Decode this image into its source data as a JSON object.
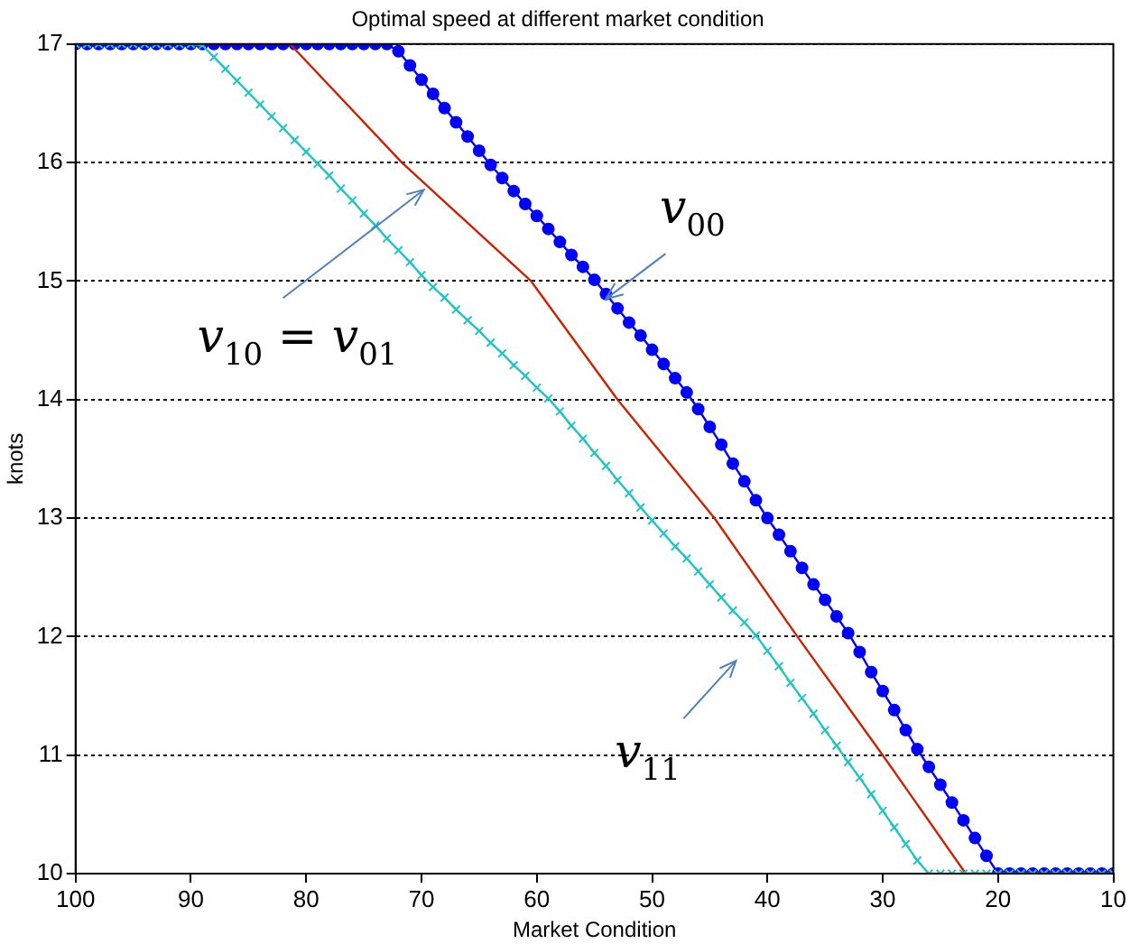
{
  "chart_data": {
    "type": "line",
    "title": "Optimal speed at different market condition",
    "xlabel": "Market Condition",
    "ylabel": "knots",
    "xlim": [
      100,
      10
    ],
    "xticks": [
      100,
      90,
      80,
      70,
      60,
      50,
      40,
      30,
      20,
      10
    ],
    "ylim": [
      10,
      17
    ],
    "yticks": [
      10,
      11,
      12,
      13,
      14,
      15,
      16,
      17
    ],
    "grid": "y",
    "legend": false,
    "series": [
      {
        "color": "#0000ff",
        "marker": "circle",
        "x": [
          100,
          99,
          98,
          97,
          96,
          95,
          94,
          93,
          92,
          91,
          90,
          89,
          88,
          87,
          86,
          85,
          84,
          83,
          82,
          81,
          80,
          79,
          78,
          77,
          76,
          75,
          74,
          73,
          72,
          71,
          70,
          69,
          68,
          67,
          66,
          65,
          64,
          63,
          62,
          61,
          60,
          59,
          58,
          57,
          56,
          55,
          54,
          53,
          52,
          51,
          50,
          49,
          48,
          47,
          46,
          45,
          44,
          43,
          42,
          41,
          40,
          39,
          38,
          37,
          36,
          35,
          34,
          33,
          32,
          31,
          30,
          29,
          28,
          27,
          26,
          25,
          24,
          23,
          22,
          21,
          20,
          19,
          18,
          17,
          16,
          15,
          14,
          13,
          12,
          11,
          10
        ],
        "values": [
          17,
          17,
          17,
          17,
          17,
          17,
          17,
          17,
          17,
          17,
          17,
          17,
          17,
          17,
          17,
          17,
          17,
          17,
          17,
          17,
          17,
          17,
          17,
          17,
          17,
          17,
          17,
          17,
          16.94,
          16.82,
          16.7,
          16.58,
          16.46,
          16.34,
          16.22,
          16.1,
          15.98,
          15.87,
          15.76,
          15.65,
          15.55,
          15.44,
          15.33,
          15.22,
          15.12,
          15.01,
          14.89,
          14.77,
          14.65,
          14.54,
          14.42,
          14.3,
          14.18,
          14.06,
          13.92,
          13.77,
          13.62,
          13.46,
          13.31,
          13.15,
          13,
          12.86,
          12.72,
          12.58,
          12.44,
          12.31,
          12.17,
          12.03,
          11.87,
          11.7,
          11.54,
          11.38,
          11.21,
          11.05,
          10.9,
          10.75,
          10.6,
          10.45,
          10.3,
          10.15,
          10,
          10,
          10,
          10,
          10,
          10,
          10,
          10,
          10,
          10,
          10
        ]
      },
      {
        "color": "#cc2200",
        "marker": "none",
        "x": [
          100,
          81.4,
          71.7,
          60.5,
          53,
          44.6,
          37.4,
          30,
          22.8,
          10
        ],
        "values": [
          17,
          17,
          16,
          15,
          14,
          13,
          12,
          11,
          10,
          10
        ]
      },
      {
        "color": "#22c4c4",
        "marker": "cross",
        "x": [
          100,
          99,
          98,
          97,
          96,
          95,
          94,
          93,
          92,
          91,
          90,
          89,
          88,
          87,
          86,
          85,
          84,
          83,
          82,
          81,
          80,
          79,
          78,
          77,
          76,
          75,
          74,
          73,
          72,
          71,
          70,
          69,
          68,
          67,
          66,
          65,
          64,
          63,
          62,
          61,
          60,
          59,
          58,
          57,
          56,
          55,
          54,
          53,
          52,
          51,
          50,
          49,
          48,
          47,
          46,
          45,
          44,
          43,
          42,
          41,
          40,
          39,
          38,
          37,
          36,
          35,
          34,
          33,
          32,
          31,
          30,
          29,
          28,
          27,
          26,
          25,
          24,
          23,
          22,
          21,
          20,
          19,
          18,
          17,
          16,
          15,
          14,
          13,
          12,
          11,
          10
        ],
        "values": [
          17,
          17,
          17,
          17,
          17,
          17,
          17,
          17,
          17,
          17,
          17,
          16.99,
          16.89,
          16.79,
          16.69,
          16.59,
          16.49,
          16.39,
          16.29,
          16.19,
          16.09,
          15.99,
          15.89,
          15.78,
          15.68,
          15.57,
          15.47,
          15.36,
          15.26,
          15.16,
          15.05,
          14.95,
          14.86,
          14.76,
          14.67,
          14.58,
          14.48,
          14.39,
          14.29,
          14.2,
          14.1,
          14.01,
          13.9,
          13.78,
          13.67,
          13.55,
          13.44,
          13.32,
          13.21,
          13.09,
          12.98,
          12.87,
          12.76,
          12.66,
          12.55,
          12.44,
          12.33,
          12.22,
          12.12,
          12.01,
          11.88,
          11.75,
          11.61,
          11.48,
          11.35,
          11.21,
          11.08,
          10.94,
          10.81,
          10.67,
          10.53,
          10.39,
          10.25,
          10.11,
          10,
          10,
          10,
          10,
          10,
          10,
          10,
          10,
          10,
          10,
          10,
          10,
          10,
          10,
          10,
          10,
          10
        ]
      }
    ],
    "annotations": [
      {
        "text": "v$_{00}$",
        "x": 54,
        "y": 14.85
      },
      {
        "text": "v$_{10}$ = v$_{01}$",
        "x": 69.8,
        "y": 15.77
      },
      {
        "text": "v$_{11}$",
        "x": 41,
        "y": 12.01
      }
    ]
  }
}
